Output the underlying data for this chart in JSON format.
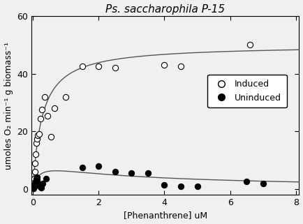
{
  "title": "Ps. saccharophila P-15",
  "xlabel": "[Phenanthrene] uM",
  "ylabel": "umoles O₂ min⁻¹ g biomass⁻¹",
  "xlim": [
    -0.05,
    8.1
  ],
  "ylim": [
    -2,
    60
  ],
  "xticks": [
    0.0,
    2.0,
    4.0,
    6.0,
    8.0
  ],
  "yticks": [
    0,
    20,
    40,
    60
  ],
  "induced_x": [
    0.03,
    0.05,
    0.07,
    0.09,
    0.11,
    0.13,
    0.15,
    0.18,
    0.22,
    0.27,
    0.35,
    0.45,
    0.55,
    0.65,
    1.0,
    1.5,
    2.0,
    2.5,
    4.0,
    4.5,
    6.6
  ],
  "induced_y": [
    3.5,
    6.0,
    9.0,
    12.0,
    16.0,
    17.5,
    18.5,
    19.0,
    24.5,
    27.5,
    32.0,
    25.5,
    18.0,
    28.0,
    32.0,
    42.5,
    42.5,
    42.0,
    43.0,
    42.5,
    50.0
  ],
  "uninduced_x": [
    0.02,
    0.03,
    0.05,
    0.07,
    0.09,
    0.1,
    0.12,
    0.13,
    0.15,
    0.18,
    0.2,
    0.25,
    0.3,
    0.4,
    1.5,
    2.0,
    2.5,
    3.0,
    3.5,
    4.0,
    4.5,
    5.0,
    6.5,
    7.0
  ],
  "uninduced_y": [
    0.3,
    0.8,
    1.2,
    1.8,
    2.5,
    3.5,
    4.0,
    3.0,
    2.0,
    1.5,
    1.0,
    0.5,
    1.8,
    3.5,
    7.5,
    8.0,
    6.0,
    5.5,
    5.5,
    1.5,
    1.0,
    1.0,
    2.5,
    2.0
  ],
  "induced_Vmax": 50.0,
  "induced_Km": 0.28,
  "uninduced_Vmax": 9.5,
  "uninduced_Km": 0.18,
  "uninduced_Ki": 2.8,
  "background_color": "#f0f0f0",
  "curve_color": "#555555",
  "legend_induced_label": "Induced",
  "legend_uninduced_label": "Uninduced",
  "title_fontsize": 11,
  "label_fontsize": 9,
  "tick_fontsize": 9
}
